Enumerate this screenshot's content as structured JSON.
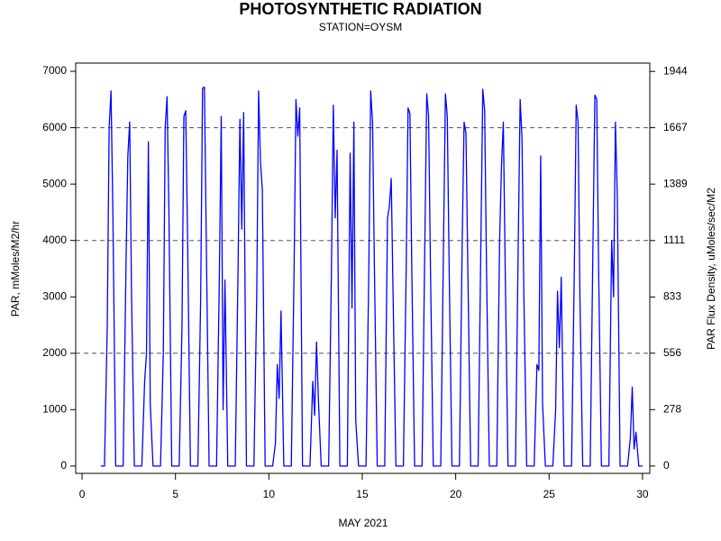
{
  "chart_data": {
    "type": "line",
    "title": "PHOTOSYNTHETIC RADIATION",
    "subtitle": "STATION=OYSM",
    "x_label": "MAY 2021",
    "y_label": "PAR, mMoles/M2/hr",
    "y2_label": "PAR Flux Density, uMoles/sec/M2",
    "xlim": [
      -0.34,
      30.39
    ],
    "xticks": [
      0,
      5,
      10,
      15,
      20,
      25,
      30
    ],
    "ylim": [
      -130,
      7145
    ],
    "yticks": [
      0,
      1000,
      2000,
      3000,
      4000,
      5000,
      6000,
      7000
    ],
    "y2lim": [
      -36,
      1985
    ],
    "y2ticks": [
      0,
      278,
      556,
      833,
      1111,
      1389,
      1667,
      1944
    ],
    "reference_lines": [
      2000,
      4000,
      6000
    ],
    "x": [
      1.0,
      1.2,
      1.35,
      1.45,
      1.55,
      1.65,
      1.8,
      2.2,
      2.35,
      2.45,
      2.55,
      2.65,
      2.8,
      3.2,
      3.35,
      3.45,
      3.55,
      3.65,
      3.8,
      4.2,
      4.35,
      4.45,
      4.55,
      4.65,
      4.8,
      5.2,
      5.35,
      5.45,
      5.55,
      5.65,
      5.8,
      6.2,
      6.35,
      6.45,
      6.55,
      6.65,
      6.8,
      7.2,
      7.35,
      7.45,
      7.55,
      7.65,
      7.8,
      8.2,
      8.35,
      8.45,
      8.55,
      8.65,
      8.8,
      9.2,
      9.35,
      9.45,
      9.55,
      9.65,
      9.8,
      10.2,
      10.35,
      10.45,
      10.55,
      10.65,
      10.8,
      11.2,
      11.35,
      11.45,
      11.55,
      11.65,
      11.8,
      12.2,
      12.35,
      12.45,
      12.55,
      12.65,
      12.8,
      13.2,
      13.35,
      13.45,
      13.55,
      13.65,
      13.8,
      14.2,
      14.35,
      14.45,
      14.55,
      14.65,
      14.8,
      15.2,
      15.35,
      15.45,
      15.55,
      15.65,
      15.8,
      16.2,
      16.35,
      16.45,
      16.55,
      16.65,
      16.8,
      17.2,
      17.35,
      17.45,
      17.55,
      17.65,
      17.8,
      18.2,
      18.35,
      18.45,
      18.55,
      18.65,
      18.8,
      19.2,
      19.35,
      19.45,
      19.55,
      19.65,
      19.8,
      20.2,
      20.35,
      20.45,
      20.55,
      20.65,
      20.8,
      21.2,
      21.35,
      21.45,
      21.55,
      21.65,
      21.8,
      22.2,
      22.35,
      22.45,
      22.55,
      22.65,
      22.8,
      23.2,
      23.35,
      23.45,
      23.55,
      23.65,
      23.8,
      24.2,
      24.35,
      24.45,
      24.55,
      24.65,
      24.8,
      25.2,
      25.35,
      25.45,
      25.55,
      25.65,
      25.8,
      26.2,
      26.35,
      26.45,
      26.55,
      26.65,
      26.8,
      27.2,
      27.35,
      27.45,
      27.55,
      27.65,
      27.8,
      28.2,
      28.35,
      28.45,
      28.55,
      28.65,
      28.8,
      29.2,
      29.35,
      29.45,
      29.55,
      29.65,
      29.8,
      30.0
    ],
    "series": [
      {
        "color": "#0000ff",
        "values": [
          0,
          0,
          2500,
          6000,
          6650,
          4500,
          0,
          0,
          3500,
          5500,
          6100,
          3000,
          0,
          0,
          1500,
          2000,
          5750,
          1100,
          0,
          0,
          2000,
          6000,
          6550,
          4500,
          0,
          0,
          2500,
          6200,
          6300,
          4000,
          0,
          0,
          3000,
          6700,
          6720,
          4000,
          0,
          0,
          3400,
          6200,
          1000,
          3300,
          0,
          0,
          3500,
          6150,
          4200,
          6270,
          0,
          0,
          3000,
          6650,
          5400,
          4900,
          0,
          0,
          400,
          1800,
          1200,
          2750,
          0,
          0,
          3500,
          6500,
          5850,
          6350,
          0,
          0,
          1500,
          900,
          2200,
          1200,
          0,
          0,
          3500,
          6400,
          4400,
          5600,
          0,
          0,
          5550,
          2800,
          6100,
          800,
          0,
          0,
          3500,
          6650,
          6100,
          3500,
          0,
          0,
          4400,
          4600,
          5100,
          3000,
          0,
          0,
          3500,
          6350,
          6250,
          3500,
          0,
          0,
          4000,
          6600,
          6200,
          3500,
          0,
          0,
          4000,
          6600,
          6200,
          3500,
          0,
          0,
          4000,
          6100,
          5900,
          3500,
          0,
          0,
          4000,
          6680,
          6300,
          3500,
          0,
          0,
          4000,
          5300,
          6100,
          3500,
          0,
          0,
          4000,
          6500,
          5800,
          3000,
          0,
          0,
          1800,
          1700,
          5500,
          1100,
          0,
          0,
          1000,
          3100,
          2100,
          3350,
          0,
          0,
          3500,
          6400,
          6100,
          3000,
          0,
          0,
          4000,
          6580,
          6500,
          3500,
          0,
          0,
          4000,
          3000,
          6100,
          4800,
          0,
          0,
          500,
          1400,
          300,
          600,
          0,
          0
        ]
      }
    ]
  }
}
